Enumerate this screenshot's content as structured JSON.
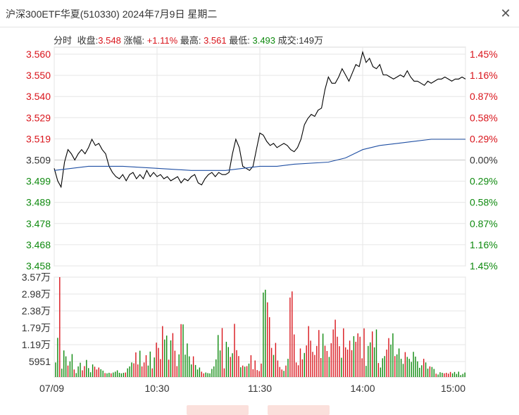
{
  "window": {
    "title": "沪深300ETF华夏(510330) 2024年7月9日 星期二",
    "close_icon": "close-icon"
  },
  "info": {
    "tab": "分时",
    "close_label": "收盘:",
    "close_value": "3.548",
    "change_label": "涨幅:",
    "change_value": "+1.11%",
    "high_label": "最高:",
    "high_value": "3.561",
    "low_label": "最低:",
    "low_value": "3.493",
    "volume_label": "成交:",
    "volume_value": "149万"
  },
  "colors": {
    "up": "#d9141b",
    "down": "#0f8a0f",
    "price": "#000000",
    "avg": "#1f4fa3",
    "grid": "#e6e6e6"
  },
  "chart_data": [
    {
      "type": "line",
      "title": "",
      "prev_close": 3.509,
      "ylim": [
        3.458,
        3.56
      ],
      "y_ticks_left": [
        "3.560",
        "3.550",
        "3.540",
        "3.529",
        "3.519",
        "3.509",
        "3.499",
        "3.489",
        "3.478",
        "3.468",
        "3.458"
      ],
      "y_ticks_right": [
        "1.45%",
        "1.16%",
        "0.87%",
        "0.58%",
        "0.29%",
        "0.00%",
        "0.29%",
        "0.58%",
        "0.87%",
        "1.16%",
        "1.45%"
      ],
      "x_ticks": [
        "07/09",
        "10:30",
        "11:30",
        "14:00",
        "15:00"
      ],
      "xlim": [
        0,
        240
      ],
      "series": [
        {
          "name": "price",
          "x": [
            0,
            2,
            4,
            6,
            8,
            10,
            12,
            14,
            16,
            18,
            20,
            22,
            24,
            26,
            28,
            30,
            32,
            34,
            36,
            38,
            40,
            42,
            44,
            46,
            48,
            50,
            52,
            54,
            56,
            58,
            60,
            62,
            64,
            66,
            68,
            70,
            72,
            74,
            76,
            78,
            80,
            82,
            84,
            86,
            88,
            90,
            92,
            94,
            96,
            98,
            100,
            102,
            104,
            106,
            108,
            110,
            112,
            114,
            116,
            118,
            120,
            122,
            124,
            126,
            128,
            130,
            132,
            134,
            136,
            138,
            140,
            142,
            144,
            146,
            148,
            150,
            152,
            154,
            156,
            158,
            160,
            162,
            164,
            166,
            168,
            170,
            172,
            174,
            176,
            178,
            180,
            182,
            184,
            186,
            188,
            190,
            192,
            194,
            196,
            198,
            200,
            202,
            204,
            206,
            208,
            210,
            212,
            214,
            216,
            218,
            220,
            222,
            224,
            226,
            228,
            230,
            232,
            234,
            236,
            238,
            240
          ],
          "y": [
            3.505,
            3.499,
            3.496,
            3.508,
            3.514,
            3.512,
            3.509,
            3.512,
            3.514,
            3.512,
            3.515,
            3.519,
            3.516,
            3.517,
            3.514,
            3.512,
            3.506,
            3.503,
            3.501,
            3.5,
            3.502,
            3.499,
            3.502,
            3.503,
            3.5,
            3.502,
            3.5,
            3.504,
            3.501,
            3.503,
            3.501,
            3.502,
            3.5,
            3.501,
            3.499,
            3.5,
            3.501,
            3.498,
            3.5,
            3.499,
            3.501,
            3.502,
            3.498,
            3.497,
            3.5,
            3.502,
            3.503,
            3.501,
            3.503,
            3.502,
            3.502,
            3.503,
            3.512,
            3.519,
            3.515,
            3.506,
            3.505,
            3.504,
            3.506,
            3.514,
            3.522,
            3.521,
            3.518,
            3.516,
            3.517,
            3.515,
            3.516,
            3.517,
            3.516,
            3.514,
            3.513,
            3.515,
            3.519,
            3.526,
            3.529,
            3.531,
            3.53,
            3.533,
            3.534,
            3.543,
            3.549,
            3.546,
            3.546,
            3.549,
            3.553,
            3.55,
            3.547,
            3.551,
            3.555,
            3.554,
            3.561,
            3.556,
            3.558,
            3.554,
            3.553,
            3.555,
            3.55,
            3.55,
            3.549,
            3.548,
            3.549,
            3.55,
            3.549,
            3.552,
            3.549,
            3.547,
            3.547,
            3.546,
            3.545,
            3.547,
            3.546,
            3.547,
            3.548,
            3.548,
            3.549,
            3.548,
            3.547,
            3.548,
            3.548,
            3.549,
            3.548
          ]
        },
        {
          "name": "average",
          "x": [
            0,
            20,
            40,
            60,
            80,
            100,
            120,
            130,
            140,
            160,
            170,
            180,
            190,
            200,
            210,
            220,
            230,
            240
          ],
          "y": [
            3.504,
            3.506,
            3.506,
            3.505,
            3.504,
            3.504,
            3.506,
            3.506,
            3.507,
            3.508,
            3.51,
            3.514,
            3.516,
            3.517,
            3.518,
            3.519,
            3.519,
            3.519
          ]
        }
      ]
    },
    {
      "type": "bar",
      "title": "",
      "y_ticks": [
        "3.57万",
        "2.98万",
        "2.38万",
        "1.79万",
        "1.19万",
        "5951"
      ],
      "ylim": [
        0,
        35700
      ],
      "volumes": [
        5200,
        14000,
        35700,
        3000,
        9500,
        7400,
        4100,
        5600,
        8200,
        2700,
        1400,
        3800,
        5100,
        2400,
        3900,
        6100,
        3200,
        1700,
        4500,
        3700,
        2700,
        3400,
        2800,
        2300,
        1400,
        1300,
        1500,
        1300,
        1600,
        1900,
        2400,
        1500,
        1300,
        1500,
        1600,
        3100,
        3800,
        5200,
        4900,
        8800,
        4500,
        9400,
        3800,
        5200,
        7800,
        4100,
        9100,
        3100,
        7000,
        12300,
        10400,
        6400,
        18200,
        13400,
        14800,
        6200,
        13100,
        15700,
        9400,
        3900,
        8100,
        18900,
        18800,
        8000,
        12000,
        7400,
        4500,
        7400,
        4300,
        2700,
        3400,
        1900,
        1300,
        1600,
        1400,
        1300,
        2900,
        3800,
        6300,
        15000,
        9500,
        17500,
        3100,
        12600,
        10700,
        7200,
        8500,
        19000,
        9600,
        7500,
        3500,
        4100,
        3700,
        3900,
        4800,
        7800,
        2800,
        5900,
        2500,
        2100,
        4800,
        30200,
        31200,
        26700,
        21400,
        10400,
        7900,
        12200,
        5900,
        3600,
        2700,
        2200,
        4100,
        6500,
        28400,
        30600,
        15200,
        5200,
        4200,
        10200,
        6300,
        8600,
        11300,
        18200,
        13000,
        9000,
        7900,
        11100,
        16800,
        6800,
        15500,
        11200,
        9300,
        7200,
        12100,
        17000,
        20500,
        14400,
        11000,
        6900,
        17400,
        10600,
        9800,
        13000,
        9600,
        14600,
        12600,
        15600,
        14400,
        6700,
        17400,
        4000,
        11100,
        12400,
        16300,
        10600,
        17000,
        5000,
        3400,
        6700,
        7500,
        9800,
        13900,
        11600,
        15600,
        7500,
        8100,
        10200,
        6500,
        4700,
        8900,
        7200,
        6500,
        5400,
        9000,
        7300,
        5600,
        3300,
        4200,
        6500,
        5200,
        3000,
        3800,
        3600,
        2900,
        1200,
        900,
        1700,
        1500,
        1300,
        1500,
        1200,
        1800,
        1300,
        1800,
        1100,
        1900,
        700,
        1100,
        1600
      ],
      "directions": "ddudddudduddduudddduuudduddudddddduddduuuduuudduduuuudduduuududdddduddduudddddddduudduduuudududuuuuuudduuuduuuududuuuuuuuduuuuuuuuduuduuuuuduuuuuduuuuudddudduddduudduddddudddddddduddudduddduuuudddddd"
    }
  ]
}
